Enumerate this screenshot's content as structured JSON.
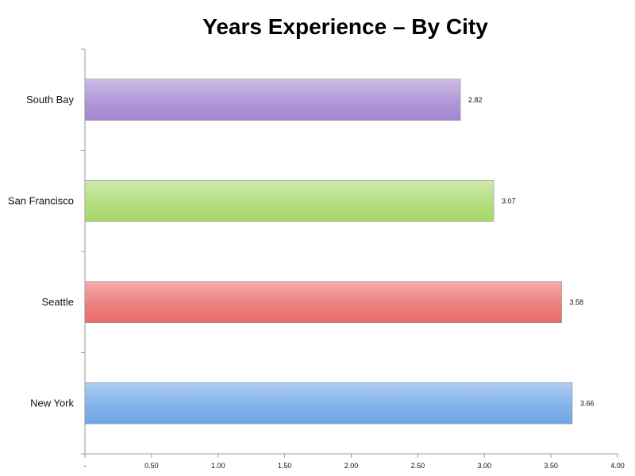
{
  "chart_data": {
    "type": "bar",
    "orientation": "horizontal",
    "title": "Years Experience – By City",
    "xlabel": "",
    "ylabel": "",
    "categories": [
      "South Bay",
      "San Francisco",
      "Seattle",
      "New York"
    ],
    "values": [
      2.82,
      3.07,
      3.58,
      3.66
    ],
    "value_labels": [
      "2.82",
      "3.07",
      "3.58",
      "3.66"
    ],
    "colors": [
      "#a386d0",
      "#a8d86a",
      "#e96b68",
      "#6ea6e6"
    ],
    "xlim": [
      0,
      4
    ],
    "x_ticks": [
      0,
      0.5,
      1,
      1.5,
      2,
      2.5,
      3,
      3.5,
      4
    ],
    "x_tick_labels": [
      "-",
      "0.50",
      "1.00",
      "1.50",
      "2.00",
      "2.50",
      "3.00",
      "3.50",
      "4.00"
    ],
    "grid": false,
    "legend": "none"
  }
}
